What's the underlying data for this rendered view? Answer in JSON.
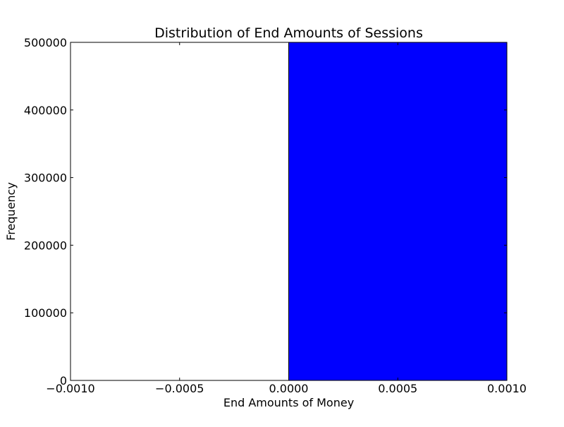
{
  "chart_data": {
    "type": "bar",
    "title": "Distribution of End Amounts of Sessions",
    "xlabel": "End Amounts of Money",
    "ylabel": "Frequency",
    "xlim": [
      -0.001,
      0.001
    ],
    "ylim": [
      0,
      500000
    ],
    "xticks": [
      -0.001,
      -0.0005,
      0.0,
      0.0005,
      0.001
    ],
    "xtick_labels": [
      "−0.0010",
      "−0.0005",
      "0.0000",
      "0.0005",
      "0.0010"
    ],
    "yticks": [
      0,
      100000,
      200000,
      300000,
      400000,
      500000
    ],
    "ytick_labels": [
      "0",
      "100000",
      "200000",
      "300000",
      "400000",
      "500000"
    ],
    "bins": [
      {
        "x_start": 0.0,
        "x_end": 0.001,
        "value": 500000
      }
    ],
    "grid": false,
    "colors": {
      "bar": "#0000ff",
      "edge": "#000000"
    }
  }
}
